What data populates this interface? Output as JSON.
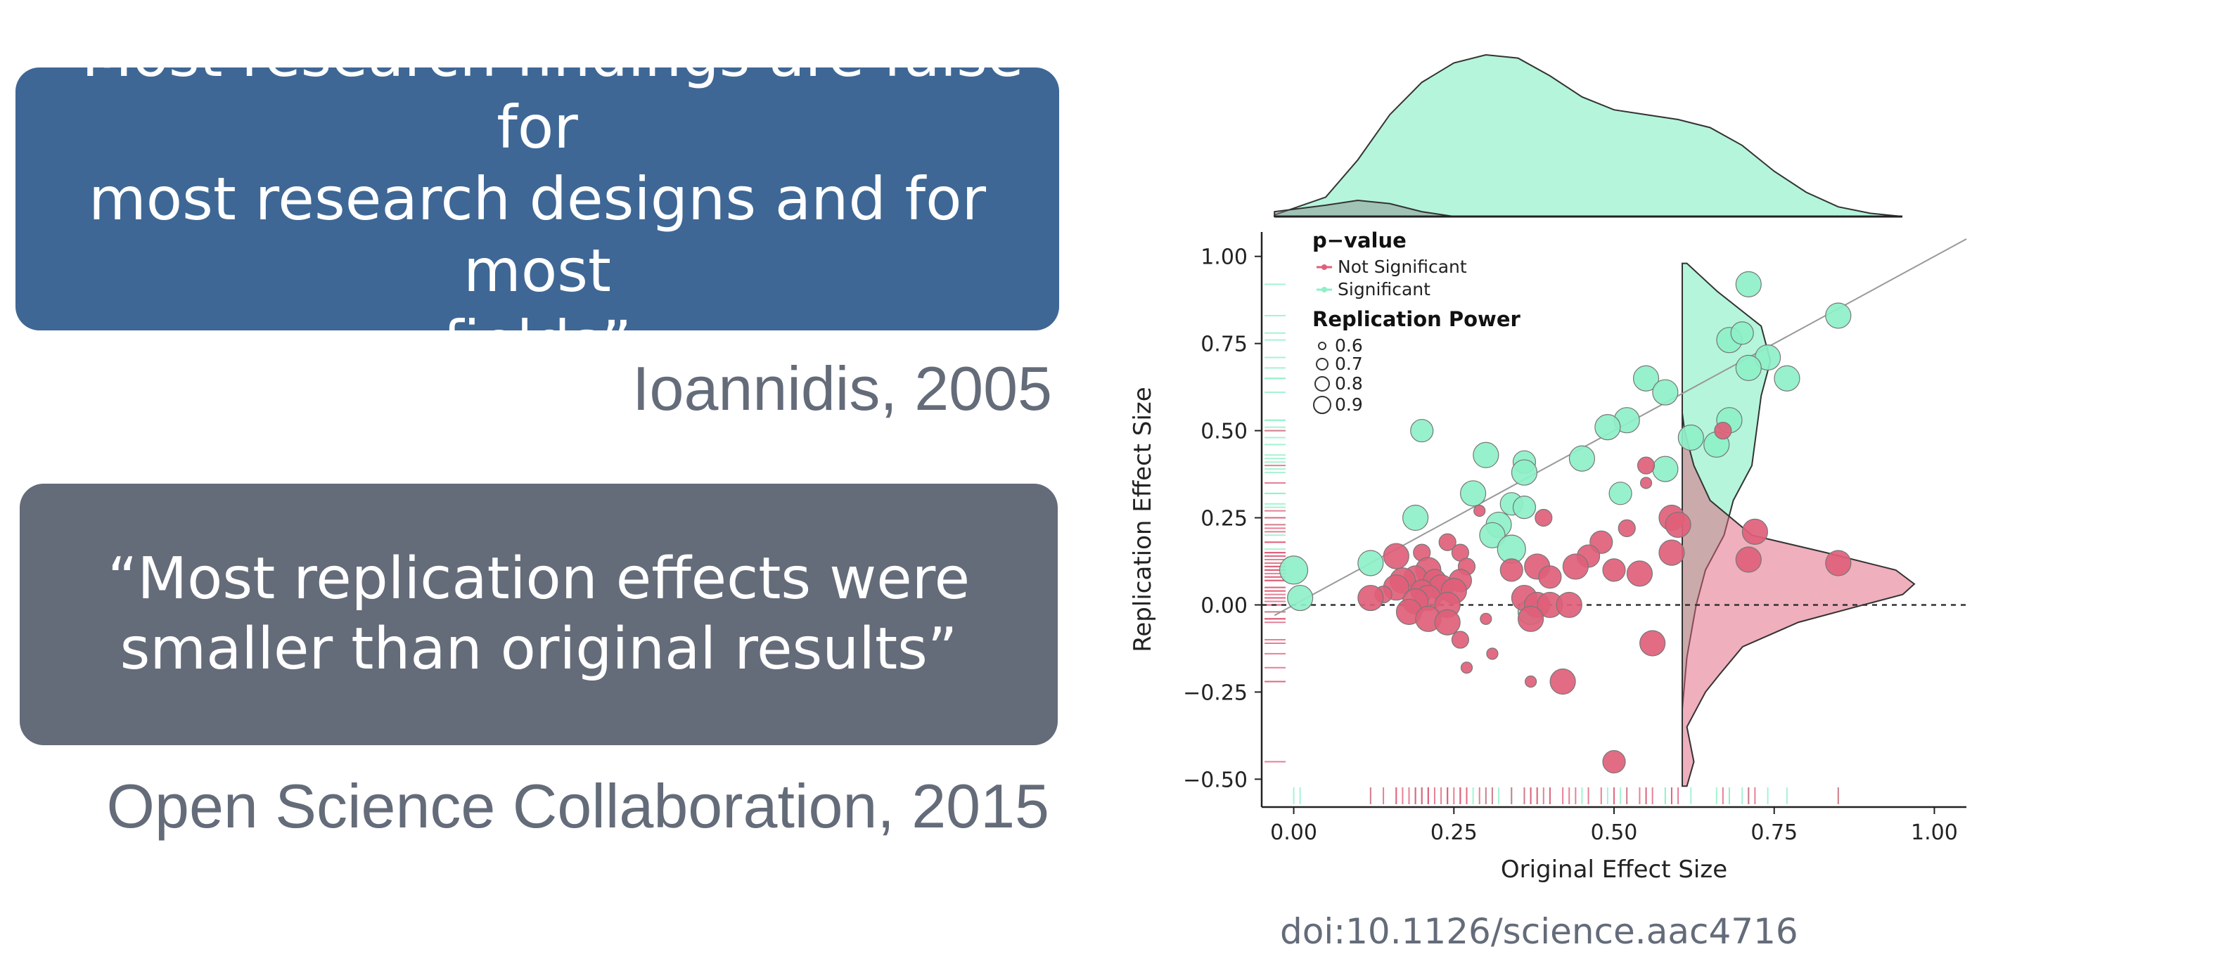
{
  "quotes": [
    {
      "lines": [
        "“Most research findings are false for",
        "most research designs and for most",
        "fields”"
      ],
      "attribution": "Ioannidis, 2005"
    },
    {
      "lines": [
        "“Most replication effects were",
        "smaller than original results”"
      ],
      "attribution": "Open Science Collaboration, 2015"
    }
  ],
  "doi": "doi:10.1126/science.aac4716",
  "colors": {
    "quote1_bg": "#3e6795",
    "quote2_bg": "#646b79",
    "significant": "#8ef0c8",
    "not_significant": "#e0607a",
    "text_gray": "#646b79"
  },
  "chart_data": {
    "type": "scatter",
    "xlabel": "Original Effect Size",
    "ylabel": "Replication Effect Size",
    "xlim": [
      -0.05,
      1.05
    ],
    "ylim": [
      -0.58,
      1.07
    ],
    "xticks": [
      0.0,
      0.25,
      0.5,
      0.75,
      1.0
    ],
    "xtick_labels": [
      "0.00",
      "0.25",
      "0.50",
      "0.75",
      "1.00"
    ],
    "yticks": [
      -0.5,
      -0.25,
      0.0,
      0.25,
      0.5,
      0.75,
      1.0
    ],
    "ytick_labels": [
      "−0.50",
      "−0.25",
      "0.00",
      "0.25",
      "0.50",
      "0.75",
      "1.00"
    ],
    "diagonal_line": true,
    "zero_line_dashed": true,
    "legend": {
      "placement": "top-left",
      "color_title": "p−value",
      "color_entries": [
        "Not Significant",
        "Significant"
      ],
      "size_title": "Replication Power",
      "size_entries": [
        "0.6",
        "0.7",
        "0.8",
        "0.9"
      ]
    },
    "series": [
      {
        "name": "Significant",
        "color": "#8ef0c8",
        "points": [
          {
            "x": 0.71,
            "y": 0.92,
            "power": 0.85
          },
          {
            "x": 0.85,
            "y": 0.83,
            "power": 0.85
          },
          {
            "x": 0.68,
            "y": 0.76,
            "power": 0.85
          },
          {
            "x": 0.7,
            "y": 0.78,
            "power": 0.8
          },
          {
            "x": 0.74,
            "y": 0.71,
            "power": 0.85
          },
          {
            "x": 0.71,
            "y": 0.68,
            "power": 0.85
          },
          {
            "x": 0.77,
            "y": 0.65,
            "power": 0.85
          },
          {
            "x": 0.55,
            "y": 0.65,
            "power": 0.85
          },
          {
            "x": 0.58,
            "y": 0.61,
            "power": 0.85
          },
          {
            "x": 0.2,
            "y": 0.5,
            "power": 0.8
          },
          {
            "x": 0.52,
            "y": 0.53,
            "power": 0.85
          },
          {
            "x": 0.49,
            "y": 0.51,
            "power": 0.85
          },
          {
            "x": 0.68,
            "y": 0.53,
            "power": 0.85
          },
          {
            "x": 0.62,
            "y": 0.48,
            "power": 0.85
          },
          {
            "x": 0.66,
            "y": 0.46,
            "power": 0.85
          },
          {
            "x": 0.3,
            "y": 0.43,
            "power": 0.85
          },
          {
            "x": 0.45,
            "y": 0.42,
            "power": 0.85
          },
          {
            "x": 0.36,
            "y": 0.41,
            "power": 0.8
          },
          {
            "x": 0.36,
            "y": 0.38,
            "power": 0.85
          },
          {
            "x": 0.58,
            "y": 0.39,
            "power": 0.85
          },
          {
            "x": 0.28,
            "y": 0.32,
            "power": 0.85
          },
          {
            "x": 0.51,
            "y": 0.32,
            "power": 0.8
          },
          {
            "x": 0.34,
            "y": 0.29,
            "power": 0.8
          },
          {
            "x": 0.36,
            "y": 0.28,
            "power": 0.8
          },
          {
            "x": 0.19,
            "y": 0.25,
            "power": 0.85
          },
          {
            "x": 0.32,
            "y": 0.23,
            "power": 0.85
          },
          {
            "x": 0.31,
            "y": 0.2,
            "power": 0.85
          },
          {
            "x": 0.34,
            "y": 0.16,
            "power": 0.9
          },
          {
            "x": 0.12,
            "y": 0.12,
            "power": 0.85
          },
          {
            "x": 0.0,
            "y": 0.1,
            "power": 0.9
          },
          {
            "x": 0.01,
            "y": 0.02,
            "power": 0.85
          },
          {
            "x": 0.37,
            "y": -0.02,
            "power": 0.85
          }
        ]
      },
      {
        "name": "Not Significant",
        "color": "#e0607a",
        "points": [
          {
            "x": 0.67,
            "y": 0.5,
            "power": 0.7
          },
          {
            "x": 0.55,
            "y": 0.4,
            "power": 0.7
          },
          {
            "x": 0.55,
            "y": 0.35,
            "power": 0.6
          },
          {
            "x": 0.39,
            "y": 0.25,
            "power": 0.7
          },
          {
            "x": 0.59,
            "y": 0.25,
            "power": 0.85
          },
          {
            "x": 0.6,
            "y": 0.23,
            "power": 0.85
          },
          {
            "x": 0.72,
            "y": 0.21,
            "power": 0.85
          },
          {
            "x": 0.48,
            "y": 0.18,
            "power": 0.8
          },
          {
            "x": 0.24,
            "y": 0.18,
            "power": 0.7
          },
          {
            "x": 0.52,
            "y": 0.22,
            "power": 0.7
          },
          {
            "x": 0.16,
            "y": 0.14,
            "power": 0.85
          },
          {
            "x": 0.26,
            "y": 0.15,
            "power": 0.7
          },
          {
            "x": 0.59,
            "y": 0.15,
            "power": 0.85
          },
          {
            "x": 0.46,
            "y": 0.14,
            "power": 0.8
          },
          {
            "x": 0.71,
            "y": 0.13,
            "power": 0.85
          },
          {
            "x": 0.85,
            "y": 0.12,
            "power": 0.85
          },
          {
            "x": 0.44,
            "y": 0.11,
            "power": 0.85
          },
          {
            "x": 0.5,
            "y": 0.1,
            "power": 0.8
          },
          {
            "x": 0.38,
            "y": 0.11,
            "power": 0.85
          },
          {
            "x": 0.34,
            "y": 0.1,
            "power": 0.8
          },
          {
            "x": 0.2,
            "y": 0.15,
            "power": 0.7
          },
          {
            "x": 0.21,
            "y": 0.1,
            "power": 0.85
          },
          {
            "x": 0.19,
            "y": 0.08,
            "power": 0.8
          },
          {
            "x": 0.22,
            "y": 0.07,
            "power": 0.8
          },
          {
            "x": 0.17,
            "y": 0.07,
            "power": 0.85
          },
          {
            "x": 0.27,
            "y": 0.11,
            "power": 0.7
          },
          {
            "x": 0.54,
            "y": 0.09,
            "power": 0.85
          },
          {
            "x": 0.4,
            "y": 0.08,
            "power": 0.8
          },
          {
            "x": 0.26,
            "y": 0.07,
            "power": 0.8
          },
          {
            "x": 0.23,
            "y": 0.05,
            "power": 0.85
          },
          {
            "x": 0.2,
            "y": 0.04,
            "power": 0.8
          },
          {
            "x": 0.25,
            "y": 0.04,
            "power": 0.85
          },
          {
            "x": 0.16,
            "y": 0.05,
            "power": 0.85
          },
          {
            "x": 0.21,
            "y": 0.02,
            "power": 0.85
          },
          {
            "x": 0.14,
            "y": 0.03,
            "power": 0.7
          },
          {
            "x": 0.12,
            "y": 0.02,
            "power": 0.85
          },
          {
            "x": 0.19,
            "y": 0.01,
            "power": 0.85
          },
          {
            "x": 0.24,
            "y": 0.0,
            "power": 0.85
          },
          {
            "x": 0.36,
            "y": 0.02,
            "power": 0.85
          },
          {
            "x": 0.38,
            "y": 0.0,
            "power": 0.85
          },
          {
            "x": 0.4,
            "y": 0.0,
            "power": 0.85
          },
          {
            "x": 0.43,
            "y": 0.0,
            "power": 0.85
          },
          {
            "x": 0.18,
            "y": -0.02,
            "power": 0.85
          },
          {
            "x": 0.21,
            "y": -0.04,
            "power": 0.85
          },
          {
            "x": 0.24,
            "y": -0.05,
            "power": 0.85
          },
          {
            "x": 0.37,
            "y": -0.04,
            "power": 0.85
          },
          {
            "x": 0.3,
            "y": -0.04,
            "power": 0.6
          },
          {
            "x": 0.26,
            "y": -0.1,
            "power": 0.7
          },
          {
            "x": 0.56,
            "y": -0.11,
            "power": 0.85
          },
          {
            "x": 0.31,
            "y": -0.14,
            "power": 0.6
          },
          {
            "x": 0.27,
            "y": -0.18,
            "power": 0.6
          },
          {
            "x": 0.37,
            "y": -0.22,
            "power": 0.6
          },
          {
            "x": 0.42,
            "y": -0.22,
            "power": 0.85
          },
          {
            "x": 0.5,
            "y": -0.45,
            "power": 0.8
          },
          {
            "x": 0.29,
            "y": 0.27,
            "power": 0.6
          }
        ]
      }
    ],
    "marginal_density": {
      "top": {
        "significant": [
          [
            -0.03,
            0.01
          ],
          [
            0.05,
            0.12
          ],
          [
            0.1,
            0.35
          ],
          [
            0.15,
            0.63
          ],
          [
            0.2,
            0.83
          ],
          [
            0.25,
            0.95
          ],
          [
            0.3,
            1.0
          ],
          [
            0.35,
            0.98
          ],
          [
            0.4,
            0.87
          ],
          [
            0.45,
            0.74
          ],
          [
            0.5,
            0.66
          ],
          [
            0.55,
            0.63
          ],
          [
            0.6,
            0.6
          ],
          [
            0.65,
            0.55
          ],
          [
            0.7,
            0.44
          ],
          [
            0.75,
            0.28
          ],
          [
            0.8,
            0.15
          ],
          [
            0.85,
            0.06
          ],
          [
            0.9,
            0.02
          ],
          [
            0.95,
            0.0
          ]
        ],
        "not_significant": [
          [
            -0.03,
            0.03
          ],
          [
            0.05,
            0.07
          ],
          [
            0.1,
            0.1
          ],
          [
            0.15,
            0.08
          ],
          [
            0.2,
            0.03
          ],
          [
            0.25,
            0.0
          ]
        ]
      },
      "right": {
        "significant": [
          [
            -0.52,
            0.0
          ],
          [
            -0.3,
            0.0
          ],
          [
            -0.15,
            0.02
          ],
          [
            0.0,
            0.06
          ],
          [
            0.1,
            0.1
          ],
          [
            0.2,
            0.18
          ],
          [
            0.3,
            0.22
          ],
          [
            0.4,
            0.3
          ],
          [
            0.5,
            0.32
          ],
          [
            0.6,
            0.34
          ],
          [
            0.7,
            0.38
          ],
          [
            0.8,
            0.34
          ],
          [
            0.9,
            0.15
          ],
          [
            0.98,
            0.02
          ]
        ],
        "not_significant": [
          [
            -0.52,
            0.02
          ],
          [
            -0.45,
            0.05
          ],
          [
            -0.35,
            0.02
          ],
          [
            -0.3,
            0.06
          ],
          [
            -0.25,
            0.1
          ],
          [
            -0.2,
            0.16
          ],
          [
            -0.12,
            0.26
          ],
          [
            -0.05,
            0.5
          ],
          [
            0.0,
            0.78
          ],
          [
            0.03,
            0.95
          ],
          [
            0.06,
            1.0
          ],
          [
            0.1,
            0.92
          ],
          [
            0.15,
            0.62
          ],
          [
            0.2,
            0.3
          ],
          [
            0.3,
            0.12
          ],
          [
            0.4,
            0.05
          ],
          [
            0.5,
            0.01
          ],
          [
            0.55,
            0.0
          ]
        ]
      }
    }
  }
}
